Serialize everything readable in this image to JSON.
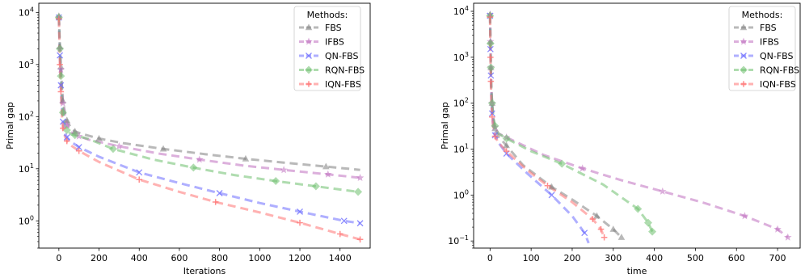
{
  "chart_data": [
    {
      "type": "line",
      "xlabel": "Iterations",
      "ylabel": "Primal gap",
      "yscale": "log",
      "xlim": [
        -100,
        1550
      ],
      "ylim": [
        0.3,
        15000
      ],
      "xticks": [
        0,
        200,
        400,
        600,
        800,
        1000,
        1200,
        1400
      ],
      "yticks": [
        {
          "value": 1,
          "base": "10",
          "exp": "0"
        },
        {
          "value": 10,
          "base": "10",
          "exp": "1"
        },
        {
          "value": 100,
          "base": "10",
          "exp": "2"
        },
        {
          "value": 1000,
          "base": "10",
          "exp": "3"
        },
        {
          "value": 10000,
          "base": "10",
          "exp": "4"
        }
      ],
      "legend": {
        "title": "Methods:",
        "position": "top-right"
      },
      "series": [
        {
          "name": "FBS",
          "color": "#7f7f7f",
          "marker": "triangle",
          "x": [
            0,
            5,
            10,
            15,
            20,
            30,
            40,
            60,
            80,
            120,
            200,
            320,
            520,
            730,
            930,
            1130,
            1330,
            1500
          ],
          "y": [
            8500,
            2200,
            900,
            400,
            200,
            120,
            85,
            60,
            52,
            46,
            38,
            31,
            24,
            19,
            15.5,
            13,
            11,
            9.5
          ]
        },
        {
          "name": "IFBS",
          "color": "#bf6fbf",
          "marker": "star",
          "x": [
            0,
            5,
            10,
            15,
            20,
            30,
            40,
            60,
            100,
            150,
            300,
            500,
            700,
            920,
            1120,
            1340,
            1500
          ],
          "y": [
            8000,
            2000,
            800,
            350,
            180,
            100,
            70,
            50,
            42,
            36,
            27,
            19.5,
            15,
            11.5,
            9.5,
            7.8,
            6.7
          ]
        },
        {
          "name": "QN-FBS",
          "color": "#6e6eff",
          "marker": "x",
          "x": [
            0,
            5,
            10,
            15,
            20,
            30,
            40,
            60,
            100,
            200,
            400,
            600,
            800,
            1000,
            1200,
            1420,
            1500
          ],
          "y": [
            8000,
            1500,
            400,
            150,
            80,
            50,
            40,
            33,
            26,
            17,
            8.5,
            5.3,
            3.4,
            2.2,
            1.5,
            1.0,
            0.9
          ]
        },
        {
          "name": "RQN-FBS",
          "color": "#6dbf6d",
          "marker": "diamond",
          "x": [
            0,
            5,
            10,
            15,
            20,
            30,
            40,
            60,
            80,
            150,
            270,
            470,
            670,
            870,
            1080,
            1280,
            1490
          ],
          "y": [
            8000,
            2000,
            600,
            250,
            120,
            70,
            55,
            46,
            44,
            37,
            24,
            15,
            10.5,
            7.6,
            5.8,
            4.6,
            3.6
          ]
        },
        {
          "name": "IQN-FBS",
          "color": "#ff7373",
          "marker": "plus",
          "x": [
            0,
            5,
            10,
            15,
            20,
            30,
            40,
            60,
            100,
            200,
            400,
            600,
            780,
            1000,
            1200,
            1400,
            1500
          ],
          "y": [
            7500,
            1000,
            300,
            110,
            60,
            42,
            34,
            28,
            22,
            13.5,
            6.2,
            3.6,
            2.3,
            1.45,
            0.92,
            0.56,
            0.44
          ]
        }
      ]
    },
    {
      "type": "line",
      "xlabel": "time",
      "ylabel": "Primal gap",
      "yscale": "log",
      "xlim": [
        -40,
        755
      ],
      "ylim": [
        0.07,
        15000
      ],
      "xticks": [
        0,
        100,
        200,
        300,
        400,
        500,
        600,
        700
      ],
      "yticks": [
        {
          "value": 0.1,
          "base": "10",
          "exp": "−1"
        },
        {
          "value": 1,
          "base": "10",
          "exp": "0"
        },
        {
          "value": 10,
          "base": "10",
          "exp": "1"
        },
        {
          "value": 100,
          "base": "10",
          "exp": "2"
        },
        {
          "value": 1000,
          "base": "10",
          "exp": "3"
        },
        {
          "value": 10000,
          "base": "10",
          "exp": "4"
        }
      ],
      "legend": {
        "title": "Methods:",
        "position": "top-right"
      },
      "series": [
        {
          "name": "FBS",
          "color": "#7f7f7f",
          "marker": "triangle",
          "x": [
            0,
            1,
            2,
            3,
            5,
            8,
            12,
            20,
            40,
            80,
            150,
            200,
            260,
            300,
            320
          ],
          "y": [
            8500,
            2200,
            600,
            220,
            100,
            45,
            28,
            19,
            12,
            4.5,
            1.5,
            0.8,
            0.35,
            0.18,
            0.12
          ]
        },
        {
          "name": "IFBS",
          "color": "#bf6fbf",
          "marker": "star",
          "x": [
            0,
            1,
            2,
            3,
            5,
            8,
            12,
            20,
            40,
            130,
            225,
            320,
            420,
            520,
            620,
            700,
            725
          ],
          "y": [
            8500,
            2200,
            600,
            220,
            100,
            45,
            30,
            22,
            18,
            7.5,
            3.8,
            2.1,
            1.2,
            0.68,
            0.35,
            0.18,
            0.12
          ]
        },
        {
          "name": "QN-FBS",
          "color": "#6e6eff",
          "marker": "x",
          "x": [
            0,
            1,
            2,
            3,
            5,
            8,
            12,
            20,
            40,
            90,
            150,
            200,
            230,
            240
          ],
          "y": [
            8000,
            1500,
            400,
            150,
            60,
            30,
            20,
            14,
            8,
            3,
            1.0,
            0.35,
            0.15,
            0.09
          ]
        },
        {
          "name": "RQN-FBS",
          "color": "#6dbf6d",
          "marker": "diamond",
          "x": [
            0,
            1,
            2,
            3,
            5,
            8,
            12,
            20,
            40,
            100,
            175,
            275,
            360,
            385,
            395
          ],
          "y": [
            8000,
            2000,
            600,
            220,
            100,
            50,
            32,
            22,
            17,
            9,
            4.8,
            1.7,
            0.5,
            0.25,
            0.16
          ]
        },
        {
          "name": "IQN-FBS",
          "color": "#ff7373",
          "marker": "plus",
          "x": [
            0,
            1,
            2,
            3,
            5,
            8,
            12,
            20,
            40,
            90,
            140,
            200,
            250,
            270,
            278
          ],
          "y": [
            7500,
            1000,
            300,
            110,
            50,
            28,
            19,
            14,
            9,
            3.5,
            1.6,
            0.7,
            0.3,
            0.18,
            0.12
          ]
        }
      ]
    }
  ]
}
